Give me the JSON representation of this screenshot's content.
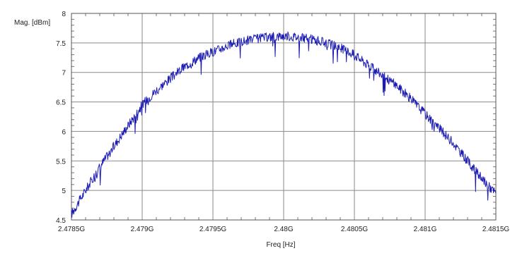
{
  "chart_data": {
    "type": "line",
    "title": "",
    "xlabel": "Freq [Hz]",
    "ylabel": "Mag. [dBm]",
    "xlim": [
      2478500000,
      2481500000
    ],
    "ylim": [
      4.5,
      8
    ],
    "grid": true,
    "legend": "none",
    "x_ticks": [
      2478500000,
      2479000000,
      2479500000,
      2480000000,
      2480500000,
      2481000000,
      2481500000
    ],
    "x_tick_labels": [
      "2.4785G",
      "2.479G",
      "2.4795G",
      "2.48G",
      "2.4805G",
      "2.481G",
      "2.4815G"
    ],
    "y_ticks": [
      4.5,
      5,
      5.5,
      6,
      6.5,
      7,
      7.5,
      8
    ],
    "y_tick_labels": [
      "4.5",
      "5",
      "5.5",
      "6",
      "6.5",
      "7",
      "7.5",
      "8"
    ],
    "series": [
      {
        "color": "#1c1cb4",
        "x": [
          2478500000,
          2478600000,
          2478700000,
          2478800000,
          2478900000,
          2479000000,
          2479100000,
          2479200000,
          2479300000,
          2479400000,
          2479500000,
          2479600000,
          2479700000,
          2479800000,
          2479900000,
          2480000000,
          2480100000,
          2480200000,
          2480300000,
          2480400000,
          2480500000,
          2480600000,
          2480700000,
          2480800000,
          2480900000,
          2481000000,
          2481100000,
          2481200000,
          2481300000,
          2481400000,
          2481500000
        ],
        "values": [
          4.6,
          5.0,
          5.4,
          5.75,
          6.1,
          6.45,
          6.7,
          6.9,
          7.1,
          7.25,
          7.35,
          7.45,
          7.52,
          7.57,
          7.6,
          7.62,
          7.6,
          7.56,
          7.5,
          7.42,
          7.3,
          7.12,
          6.95,
          6.78,
          6.55,
          6.3,
          6.05,
          5.8,
          5.5,
          5.2,
          4.95
        ]
      }
    ]
  }
}
